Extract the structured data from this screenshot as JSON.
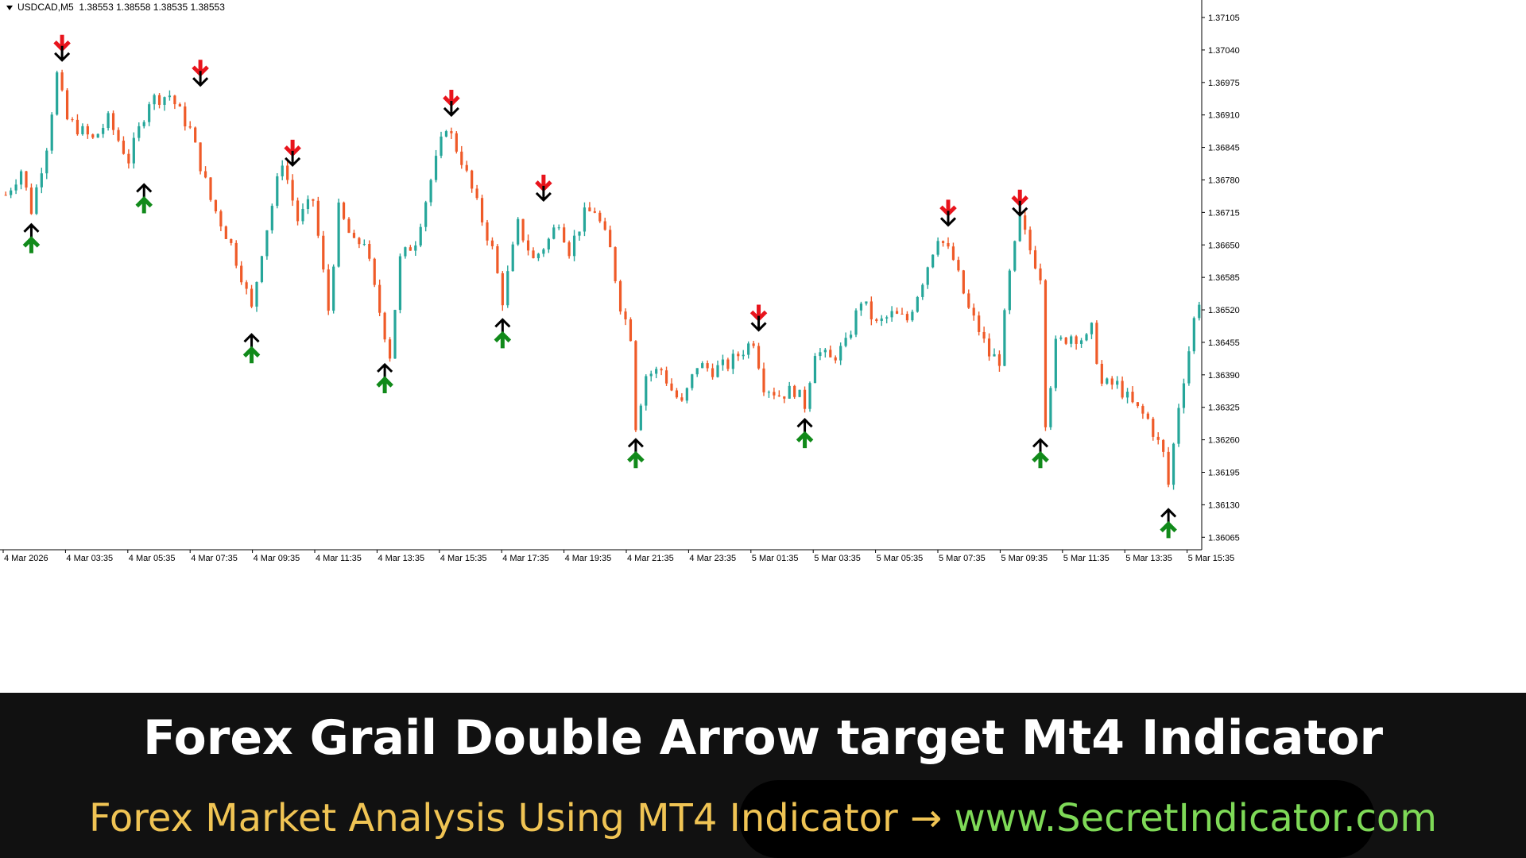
{
  "header": {
    "symbol": "USDCAD,M5",
    "prices": "1.38553 1.38558 1.38535 1.38553"
  },
  "banner": {
    "title": "Forex Grail Double Arrow target Mt4 Indicator",
    "subtitle_part1": "Forex Market Analysis Using MT4 Indicator",
    "arrow": "→",
    "subtitle_part2": "www.SecretIndicator.com"
  },
  "colors": {
    "bull_candle": "#26a69a",
    "bear_candle": "#ef5a28",
    "sell_arrow": "#e8141c",
    "buy_arrow": "#118a1a",
    "target_arrow": "#000000"
  },
  "chart_data": {
    "type": "candlestick",
    "title": "",
    "xlabel": "",
    "ylabel": "",
    "ylim": [
      1.3604,
      1.3714
    ],
    "y_ticks": [
      "1.37105",
      "1.37040",
      "1.36975",
      "1.36910",
      "1.36845",
      "1.36780",
      "1.36715",
      "1.36650",
      "1.36585",
      "1.36520",
      "1.36455",
      "1.36390",
      "1.36325",
      "1.36260",
      "1.36195",
      "1.36130",
      "1.36065"
    ],
    "x_ticks": [
      "4 Mar 2026",
      "4 Mar 03:35",
      "4 Mar 05:35",
      "4 Mar 07:35",
      "4 Mar 09:35",
      "4 Mar 11:35",
      "4 Mar 13:35",
      "4 Mar 15:35",
      "4 Mar 17:35",
      "4 Mar 19:35",
      "4 Mar 21:35",
      "4 Mar 23:35",
      "5 Mar 01:35",
      "5 Mar 03:35",
      "5 Mar 05:35",
      "5 Mar 07:35",
      "5 Mar 09:35",
      "5 Mar 11:35",
      "5 Mar 13:35",
      "5 Mar 15:35"
    ],
    "price_path": [
      [
        0,
        1.3675
      ],
      [
        3,
        1.368
      ],
      [
        5,
        1.3672
      ],
      [
        8,
        1.3685
      ],
      [
        10,
        1.3699
      ],
      [
        12,
        1.369
      ],
      [
        17,
        1.3686
      ],
      [
        20,
        1.369
      ],
      [
        24,
        1.3682
      ],
      [
        28,
        1.3694
      ],
      [
        32,
        1.3695
      ],
      [
        36,
        1.3688
      ],
      [
        40,
        1.3674
      ],
      [
        44,
        1.3665
      ],
      [
        46,
        1.3659
      ],
      [
        48,
        1.3652
      ],
      [
        50,
        1.3664
      ],
      [
        54,
        1.3682
      ],
      [
        57,
        1.367
      ],
      [
        60,
        1.3674
      ],
      [
        63,
        1.3652
      ],
      [
        65,
        1.3672
      ],
      [
        68,
        1.3665
      ],
      [
        70,
        1.3666
      ],
      [
        72,
        1.3656
      ],
      [
        75,
        1.3643
      ],
      [
        77,
        1.3662
      ],
      [
        80,
        1.3666
      ],
      [
        83,
        1.3678
      ],
      [
        86,
        1.3689
      ],
      [
        89,
        1.3682
      ],
      [
        92,
        1.3673
      ],
      [
        95,
        1.3664
      ],
      [
        97,
        1.3654
      ],
      [
        100,
        1.3669
      ],
      [
        103,
        1.3662
      ],
      [
        106,
        1.3666
      ],
      [
        108,
        1.367
      ],
      [
        110,
        1.3664
      ],
      [
        113,
        1.3671
      ],
      [
        115,
        1.3672
      ],
      [
        118,
        1.3664
      ],
      [
        120,
        1.3653
      ],
      [
        122,
        1.3647
      ],
      [
        123,
        1.3629
      ],
      [
        125,
        1.3639
      ],
      [
        128,
        1.364
      ],
      [
        130,
        1.3636
      ],
      [
        132,
        1.3633
      ],
      [
        135,
        1.3641
      ],
      [
        138,
        1.364
      ],
      [
        141,
        1.3641
      ],
      [
        144,
        1.3644
      ],
      [
        146,
        1.3646
      ],
      [
        148,
        1.3637
      ],
      [
        151,
        1.3635
      ],
      [
        154,
        1.3636
      ],
      [
        156,
        1.3633
      ],
      [
        158,
        1.3644
      ],
      [
        161,
        1.3642
      ],
      [
        164,
        1.3645
      ],
      [
        167,
        1.3654
      ],
      [
        170,
        1.3649
      ],
      [
        173,
        1.3651
      ],
      [
        176,
        1.365
      ],
      [
        179,
        1.3658
      ],
      [
        182,
        1.3667
      ],
      [
        185,
        1.3662
      ],
      [
        188,
        1.3652
      ],
      [
        190,
        1.3648
      ],
      [
        192,
        1.3643
      ],
      [
        194,
        1.3642
      ],
      [
        196,
        1.3659
      ],
      [
        198,
        1.367
      ],
      [
        200,
        1.3664
      ],
      [
        202,
        1.3659
      ],
      [
        203,
        1.363
      ],
      [
        205,
        1.3645
      ],
      [
        208,
        1.3647
      ],
      [
        211,
        1.3646
      ],
      [
        212,
        1.3648
      ],
      [
        214,
        1.3637
      ],
      [
        217,
        1.3637
      ],
      [
        220,
        1.3633
      ],
      [
        223,
        1.363
      ],
      [
        226,
        1.3623
      ],
      [
        227,
        1.3617
      ],
      [
        229,
        1.3633
      ],
      [
        231,
        1.3644
      ],
      [
        232,
        1.365
      ],
      [
        233,
        1.3654
      ]
    ],
    "signals": [
      {
        "type": "buy",
        "bar": 5,
        "price": 1.367
      },
      {
        "type": "sell",
        "bar": 11,
        "price": 1.3701
      },
      {
        "type": "buy",
        "bar": 27,
        "price": 1.3678
      },
      {
        "type": "sell",
        "bar": 38,
        "price": 1.3696
      },
      {
        "type": "buy",
        "bar": 48,
        "price": 1.3648
      },
      {
        "type": "sell",
        "bar": 56,
        "price": 1.368
      },
      {
        "type": "buy",
        "bar": 74,
        "price": 1.3642
      },
      {
        "type": "sell",
        "bar": 87,
        "price": 1.369
      },
      {
        "type": "buy",
        "bar": 97,
        "price": 1.3651
      },
      {
        "type": "sell",
        "bar": 105,
        "price": 1.3673
      },
      {
        "type": "buy",
        "bar": 123,
        "price": 1.3627
      },
      {
        "type": "sell",
        "bar": 147,
        "price": 1.3647
      },
      {
        "type": "buy",
        "bar": 156,
        "price": 1.3631
      },
      {
        "type": "sell",
        "bar": 184,
        "price": 1.3668
      },
      {
        "type": "sell",
        "bar": 198,
        "price": 1.367
      },
      {
        "type": "buy",
        "bar": 202,
        "price": 1.3627
      },
      {
        "type": "buy",
        "bar": 227,
        "price": 1.3613
      }
    ],
    "grid": false,
    "legend": "none"
  }
}
